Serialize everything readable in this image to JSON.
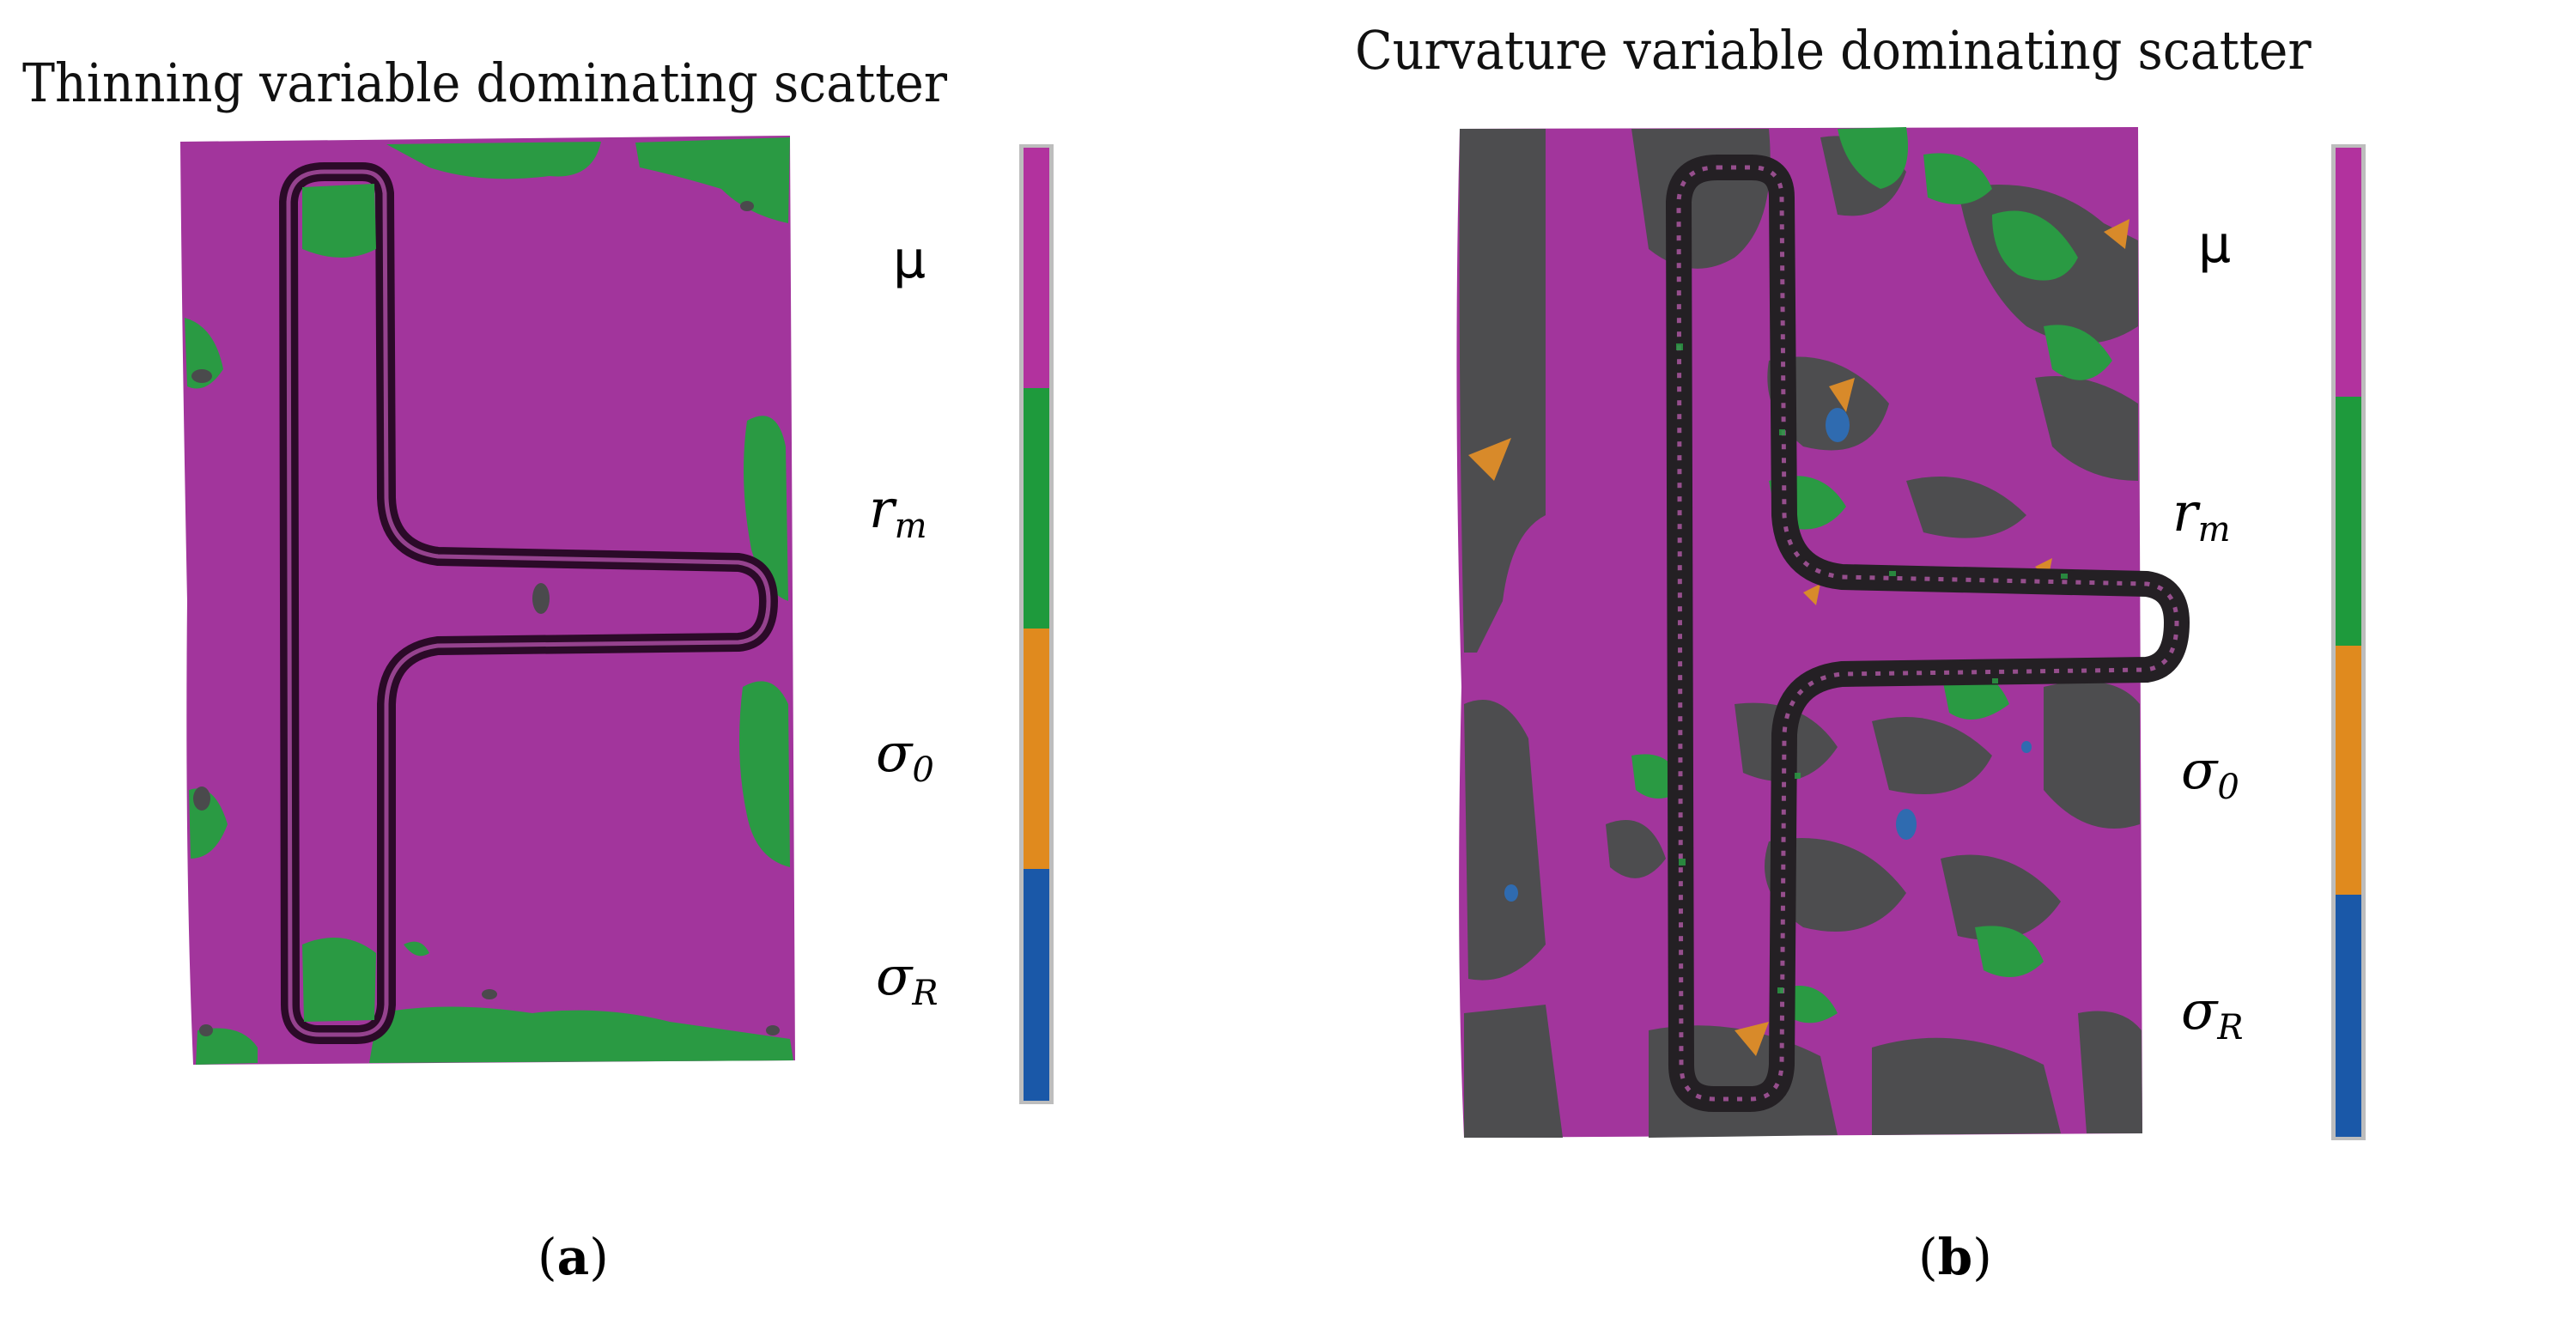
{
  "panels": [
    {
      "title": "Thinning variable dominating scatter",
      "label": {
        "open": "(",
        "letter": "a",
        "close": ")"
      }
    },
    {
      "title": "Curvature variable dominating scatter",
      "label": {
        "open": "(",
        "letter": "b",
        "close": ")"
      }
    }
  ],
  "legend": [
    {
      "symbol": "μ",
      "color": "#b2329e"
    },
    {
      "symbol": "r",
      "subscript": "m",
      "color": "#1e9a3c"
    },
    {
      "symbol": "σ",
      "subscript": "0",
      "color": "#e08a1e"
    },
    {
      "symbol": "σ",
      "subscript": "R",
      "color": "#1a58a8"
    }
  ],
  "colors": {
    "magenta": "#a0349a",
    "green": "#2a9a43",
    "dark_gray": "#4d4d4f",
    "orange": "#d88a2a",
    "blue": "#2f6bb0"
  }
}
